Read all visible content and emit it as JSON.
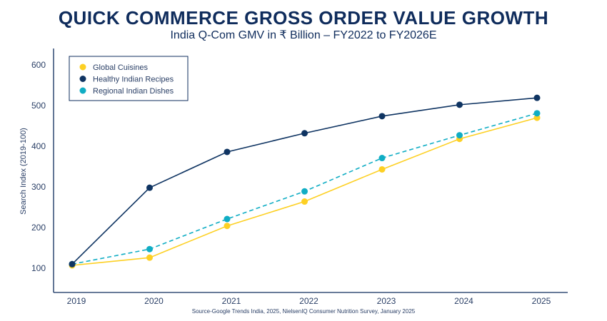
{
  "title": "QUICK COMMERCE GROSS ORDER VALUE GROWTH",
  "subtitle": "India Q-Com GMV in ₹ Billion – FY2022 to FY2026E",
  "source": "Source-Google Trends India, 2025, NielsenIQ Consumer Nutrition Survey, January 2025",
  "chart_data": {
    "type": "line",
    "title": "QUICK COMMERCE GROSS ORDER VALUE GROWTH",
    "xlabel": "",
    "ylabel": "Search Index (2019-100)",
    "x": [
      "2019",
      "2020",
      "2021",
      "2022",
      "2023",
      "2024",
      "2025"
    ],
    "yticks": [
      100,
      200,
      300,
      400,
      500,
      600
    ],
    "ylim": [
      30,
      630
    ],
    "legend_position": "top-left",
    "series": [
      {
        "name": "Global Cuisines",
        "color": "#fdd023",
        "dashed": false,
        "values": [
          107,
          126,
          204,
          264,
          343,
          418,
          470
        ]
      },
      {
        "name": "Healthy Indian Recipes",
        "color": "#0f3462",
        "dashed": false,
        "values": [
          110,
          298,
          386,
          432,
          474,
          502,
          519
        ]
      },
      {
        "name": "Regional Indian Dishes",
        "color": "#10adc4",
        "dashed": true,
        "values": [
          110,
          147,
          221,
          289,
          371,
          427,
          481
        ]
      }
    ]
  }
}
